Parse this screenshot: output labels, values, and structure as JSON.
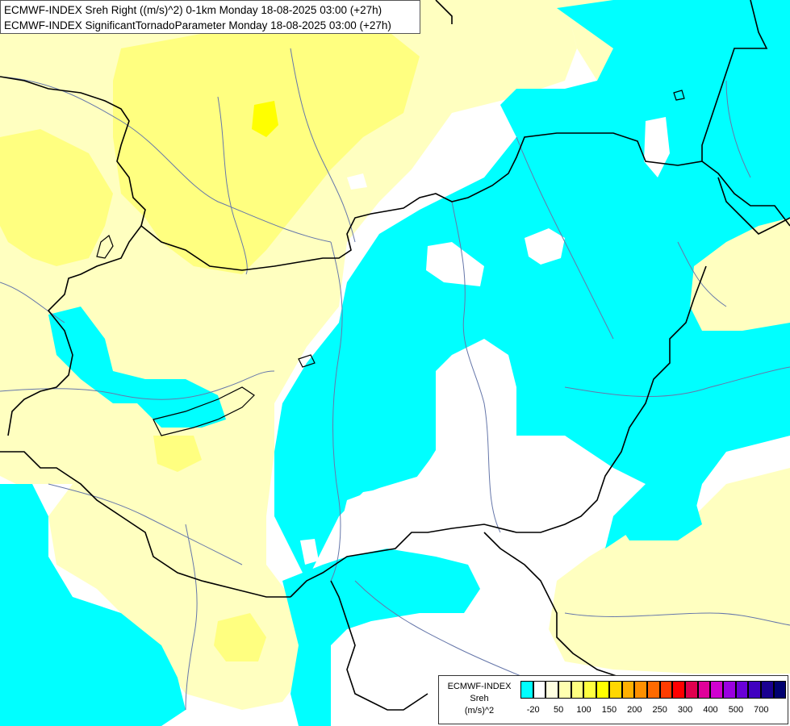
{
  "title": {
    "line1": "ECMWF-INDEX Sreh Right ((m/s)^2) 0-1km Monday 18-08-2025 03:00 (+27h)",
    "line2": "ECMWF-INDEX SignificantTornadoParameter Monday 18-08-2025 03:00 (+27h)"
  },
  "legend": {
    "source": "ECMWF-INDEX",
    "variable": "Sreh",
    "unit": "(m/s)^2",
    "colors": [
      "#00ffff",
      "#ffffff",
      "#ffffe0",
      "#ffffb0",
      "#ffff80",
      "#ffff40",
      "#ffff00",
      "#ffd700",
      "#ffb000",
      "#ff9000",
      "#ff6a00",
      "#ff3c00",
      "#ff0000",
      "#e0004f",
      "#e0009a",
      "#d000d0",
      "#9a00e0",
      "#6a00d8",
      "#4000c0",
      "#1a0090",
      "#000070"
    ],
    "tick_labels": [
      "-20",
      "50",
      "100",
      "150",
      "200",
      "250",
      "300",
      "400",
      "500",
      "700"
    ]
  },
  "map_colors": {
    "cyan": "#00ffff",
    "light_yellow": "#ffffc0",
    "yellow": "#ffff80",
    "bright_yellow": "#ffff00",
    "white": "#ffffff",
    "border": "#000000",
    "river": "#6677aa"
  }
}
